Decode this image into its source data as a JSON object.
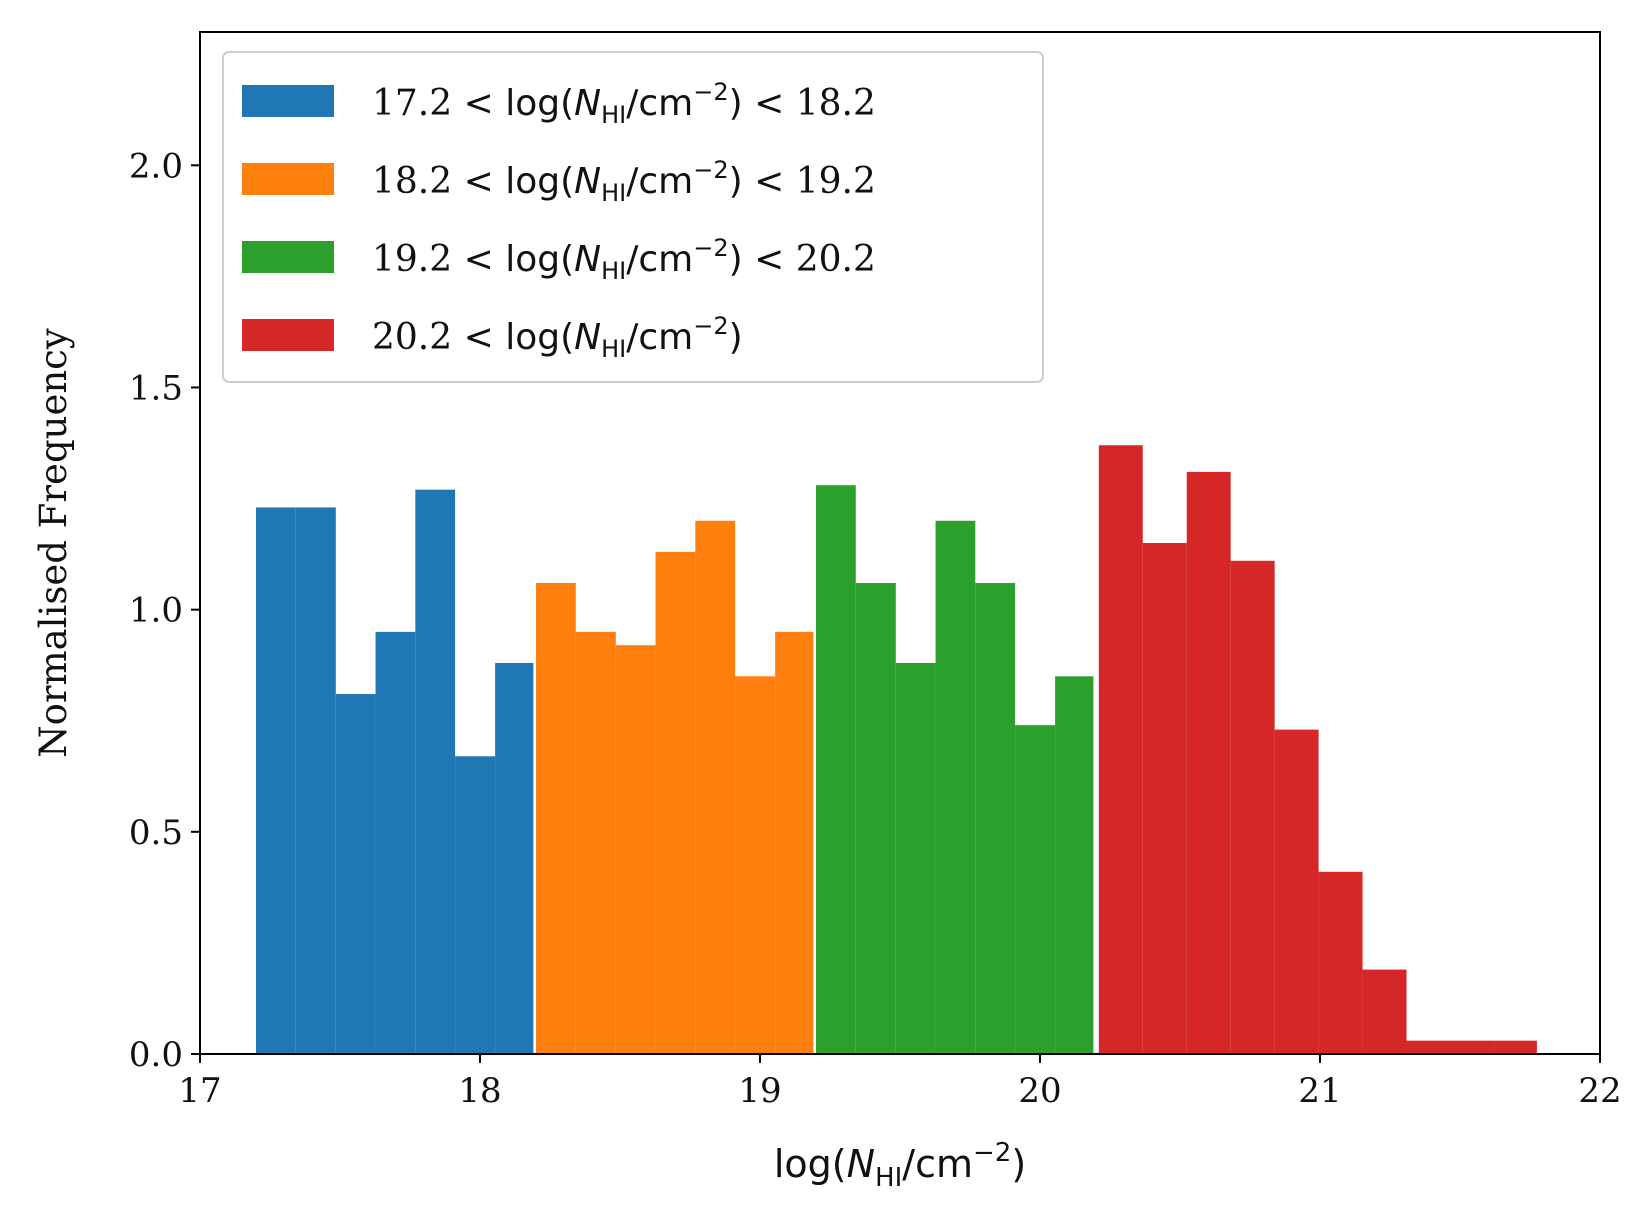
{
  "chart_data": {
    "type": "bar",
    "xlabel": "log(N_HI/cm^-2)",
    "ylabel": "Normalised Frequency",
    "xlim": [
      17,
      22
    ],
    "ylim": [
      0,
      2.3
    ],
    "xticks": [
      17,
      18,
      19,
      20,
      21,
      22
    ],
    "yticks": [
      "0.0",
      "0.5",
      "1.0",
      "1.5",
      "2.0"
    ],
    "grid": false,
    "legend_position": "top-left",
    "series": [
      {
        "name": "17.2 < log(N_HI/cm^-2) < 18.2",
        "legend": {
          "low": "17.2",
          "high": "18.2"
        },
        "color": "#1f77b4",
        "bin_edges": [
          17.2,
          17.342,
          17.485,
          17.627,
          17.769,
          17.911,
          18.054,
          18.196
        ],
        "values": [
          1.23,
          1.23,
          0.81,
          0.95,
          1.27,
          0.67,
          0.88
        ]
      },
      {
        "name": "18.2 < log(N_HI/cm^-2) < 19.2",
        "legend": {
          "low": "18.2",
          "high": "19.2"
        },
        "color": "#ff7f0e",
        "bin_edges": [
          18.2,
          18.342,
          18.485,
          18.627,
          18.769,
          18.911,
          19.054,
          19.196
        ],
        "values": [
          1.06,
          0.95,
          0.92,
          1.13,
          1.2,
          0.85,
          0.95
        ]
      },
      {
        "name": "19.2 < log(N_HI/cm^-2) < 20.2",
        "legend": {
          "low": "19.2",
          "high": "20.2"
        },
        "color": "#2ca02c",
        "bin_edges": [
          19.2,
          19.342,
          19.485,
          19.627,
          19.769,
          19.911,
          20.054,
          20.196
        ],
        "values": [
          1.28,
          1.06,
          0.88,
          1.2,
          1.06,
          0.74,
          0.85
        ]
      },
      {
        "name": "20.2 < log(N_HI/cm^-2)",
        "legend": {
          "low": "20.2",
          "high": ""
        },
        "color": "#d62728",
        "bin_edges": [
          20.21,
          20.367,
          20.524,
          20.681,
          20.838,
          20.995,
          21.152,
          21.309,
          21.466,
          21.623,
          21.78
        ],
        "values": [
          1.37,
          1.15,
          1.31,
          1.11,
          0.73,
          0.41,
          0.19,
          0.03,
          0.03,
          0.03
        ]
      }
    ]
  }
}
